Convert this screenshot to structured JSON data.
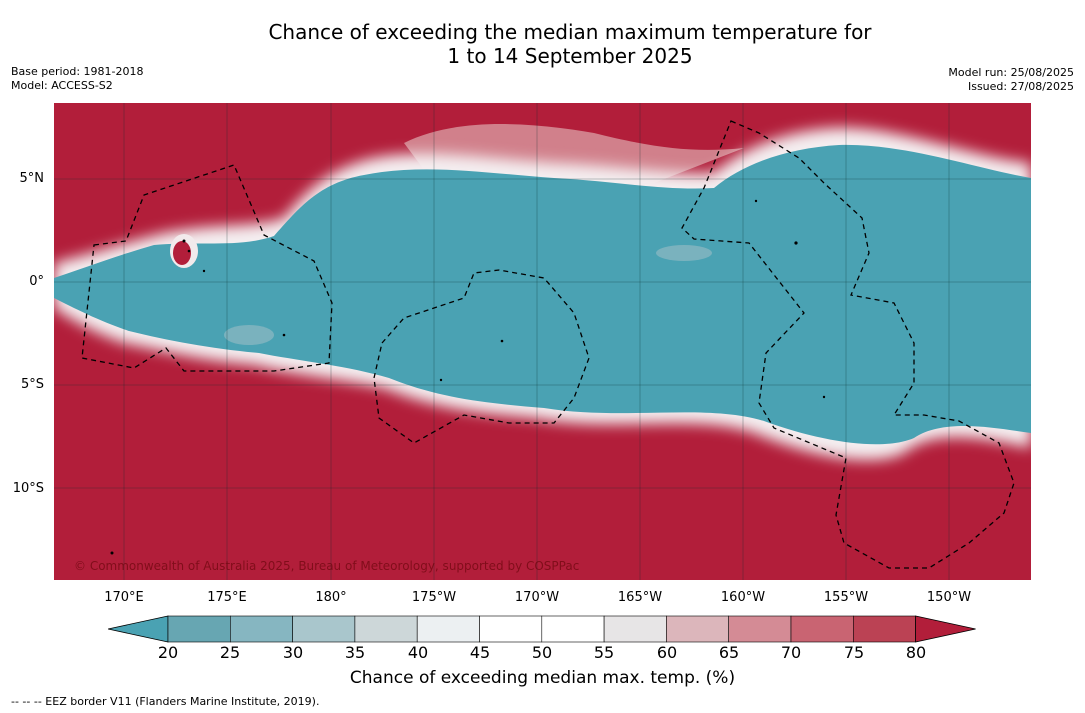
{
  "title_line1": "Chance of exceeding the median maximum temperature for",
  "title_line2": "1 to 14 September 2025",
  "base_period": "Base period: 1981-2018",
  "model": "Model: ACCESS-S2",
  "model_run": "Model run: 25/08/2025",
  "issued": "Issued: 27/08/2025",
  "credit": "© Commonwealth of Australia 2025, Bureau of Meteorology, supported by COSPPac",
  "lat_labels": [
    "5°N",
    "0°",
    "5°S",
    "10°S"
  ],
  "lon_labels": [
    "170°E",
    "175°E",
    "180°",
    "175°W",
    "170°W",
    "165°W",
    "160°W",
    "155°W",
    "150°W"
  ],
  "colorbar": {
    "label": "Chance of exceeding median max. temp. (%)",
    "ticks": [
      "20",
      "25",
      "30",
      "35",
      "40",
      "45",
      "50",
      "55",
      "60",
      "65",
      "70",
      "75",
      "80"
    ],
    "colors": [
      "#67a6b2",
      "#86b6c1",
      "#a9c6cc",
      "#cdd7d9",
      "#ecf0f2",
      "#ffffff",
      "#ffffff",
      "#e7e5e6",
      "#dcb6bb",
      "#d48b95",
      "#c96472",
      "#bb4254"
    ],
    "under_color": "#4aa2b3",
    "over_color": "#b21e3a"
  },
  "map_colors": {
    "warm": "#b21e3a",
    "cool": "#4aa2b3"
  },
  "eez_legend": "--  --  -- EEZ border V11 (Flanders Marine Institute, 2019)."
}
